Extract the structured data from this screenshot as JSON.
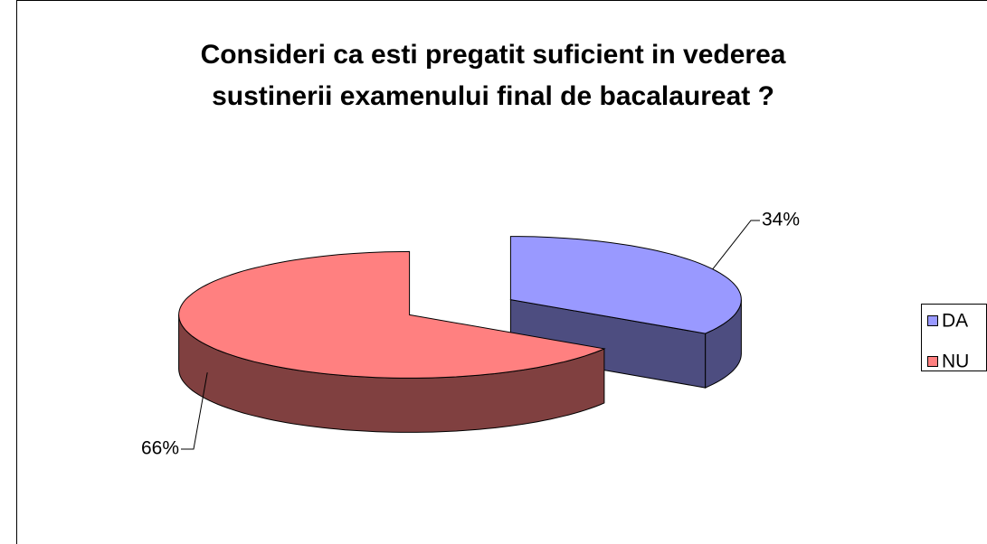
{
  "chart_data": {
    "type": "pie",
    "title": "Consideri ca esti pregatit suficient in vederea sustinerii examenului final de bacalaureat ?",
    "categories": [
      "DA",
      "NU"
    ],
    "values": [
      34,
      66
    ],
    "value_labels": [
      "34%",
      "66%"
    ],
    "colors": [
      "#9999ff",
      "#ff8080"
    ],
    "side_colors": [
      "#4d4d80",
      "#804040"
    ],
    "three_d": true,
    "exploded": true,
    "legend": "right"
  }
}
